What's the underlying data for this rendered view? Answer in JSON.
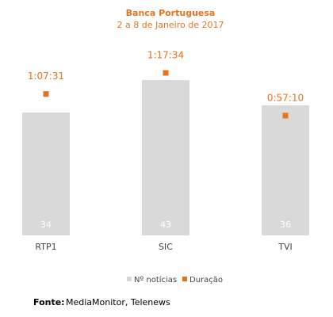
{
  "chart_data": {
    "type": "bar",
    "title": "Banca Portuguesa",
    "subtitle": "2 a 8 de Janeiro de 2017",
    "categories": [
      "RTP1",
      "SIC",
      "TVI"
    ],
    "series": [
      {
        "name": "Nº notícias",
        "color": "#d9d9d9",
        "type": "bar",
        "values": [
          34,
          43,
          36
        ]
      },
      {
        "name": "Duração",
        "color": "#e8731e",
        "type": "scatter",
        "values": [
          4051,
          4654,
          3430
        ],
        "value_labels": [
          "1:07:31",
          "1:17:34",
          "0:57:10"
        ]
      }
    ],
    "source": {
      "label": "Fonte:",
      "text": "MediaMonitor, Telenews"
    }
  }
}
